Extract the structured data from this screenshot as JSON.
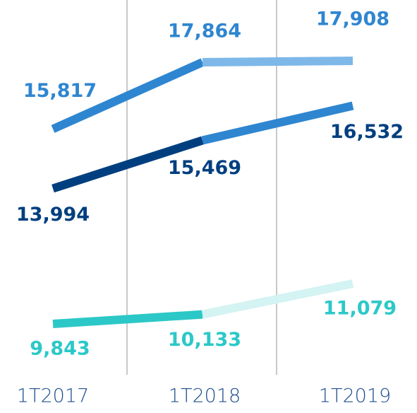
{
  "chart_data": {
    "type": "line",
    "categories": [
      "1T2017",
      "1T2018",
      "1T2019"
    ],
    "series": [
      {
        "color": "#2f86d0",
        "colors": [
          "#2f86d0",
          "#7db8e8"
        ],
        "values": [
          15817,
          17864,
          17908
        ],
        "value_labels": [
          "15,817",
          "17,864",
          "17,908"
        ]
      },
      {
        "color": "#003f7f",
        "colors": [
          "#003f7f",
          "#2f86d0"
        ],
        "values": [
          13994,
          15469,
          16532
        ],
        "value_labels": [
          "13,994",
          "15,469",
          "16,532"
        ]
      },
      {
        "color": "#2cc8c8",
        "colors": [
          "#2cc8c8",
          "#d4f3f3"
        ],
        "values": [
          9843,
          10133,
          11079
        ],
        "value_labels": [
          "9,843",
          "10,133",
          "11,079"
        ]
      }
    ]
  }
}
